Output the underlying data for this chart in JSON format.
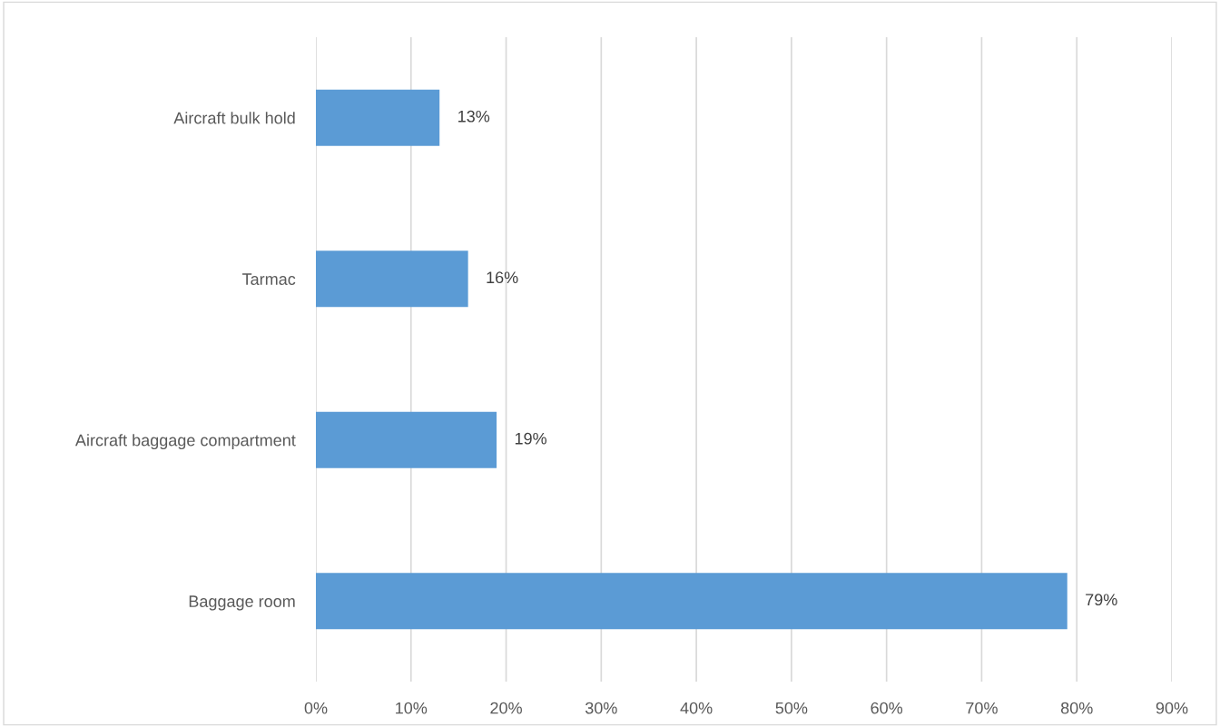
{
  "chart_data": {
    "type": "bar",
    "orientation": "horizontal",
    "categories": [
      "Aircraft bulk hold",
      "Tarmac",
      "Aircraft baggage compartment",
      "Baggage room"
    ],
    "values": [
      13,
      16,
      19,
      79
    ],
    "value_labels": [
      "13%",
      "16%",
      "19%",
      "79%"
    ],
    "color": "#5b9bd5",
    "xlim": [
      0,
      90
    ],
    "xticks": [
      {
        "value": 0,
        "label": "0%"
      },
      {
        "value": 10,
        "label": "10%"
      },
      {
        "value": 20,
        "label": "20%"
      },
      {
        "value": 30,
        "label": "30%"
      },
      {
        "value": 40,
        "label": "40%"
      },
      {
        "value": 50,
        "label": "50%"
      },
      {
        "value": 60,
        "label": "60%"
      },
      {
        "value": 70,
        "label": "70%"
      },
      {
        "value": 80,
        "label": "80%"
      },
      {
        "value": 90,
        "label": "90%"
      }
    ],
    "grid": "x",
    "legend": false
  }
}
